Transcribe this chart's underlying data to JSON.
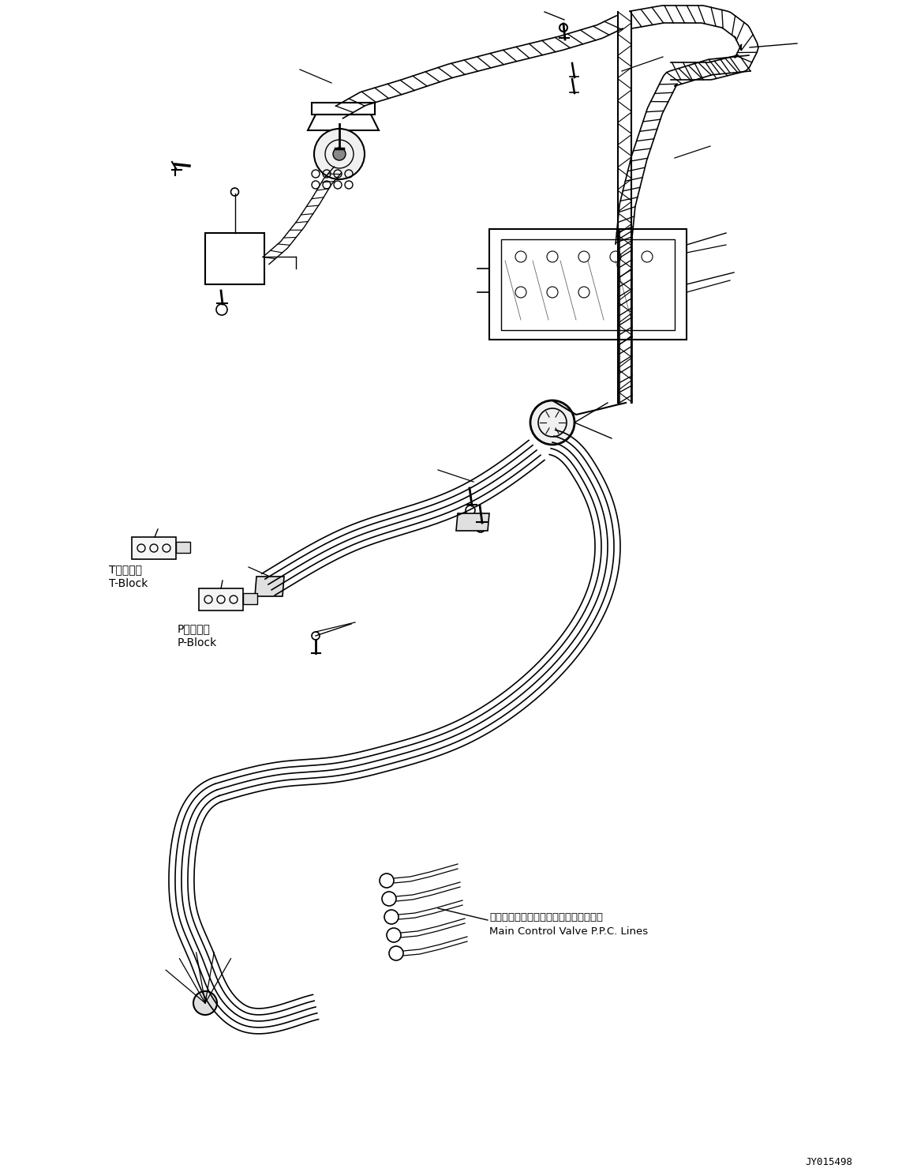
{
  "bg_color": "#ffffff",
  "line_color": "#000000",
  "part_number": "JY015498",
  "label_t_block_jp": "Tブロック",
  "label_t_block_en": "T-Block",
  "label_p_block_jp": "Pブロック",
  "label_p_block_en": "P-Block",
  "label_main_jp": "メインコントロールバルブＰＰＣライン",
  "label_main_en": "Main Control Valve P.P.C. Lines",
  "fig_width": 11.43,
  "fig_height": 14.89
}
